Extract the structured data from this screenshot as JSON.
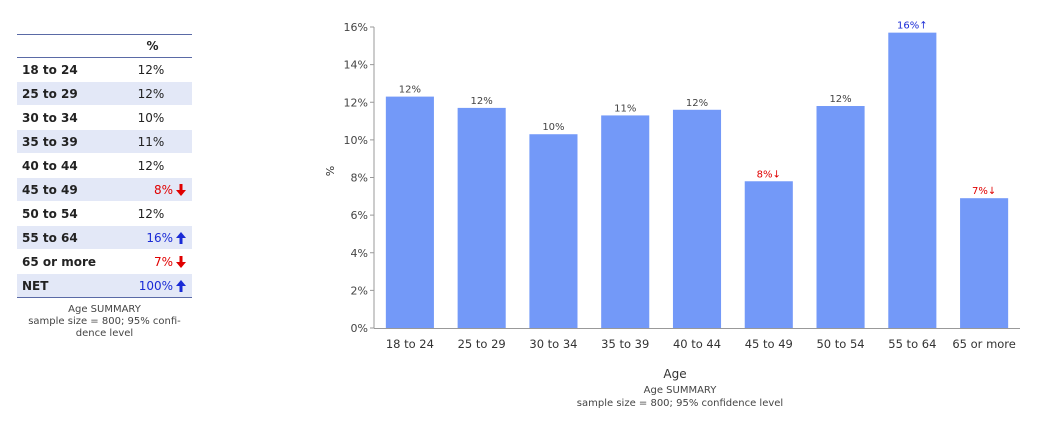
{
  "table": {
    "column_header": "%",
    "rows": [
      {
        "label": "18 to 24",
        "value": "12%",
        "sig": "none"
      },
      {
        "label": "25 to 29",
        "value": "12%",
        "sig": "none"
      },
      {
        "label": "30 to 34",
        "value": "10%",
        "sig": "none"
      },
      {
        "label": "35 to 39",
        "value": "11%",
        "sig": "none"
      },
      {
        "label": "40 to 44",
        "value": "12%",
        "sig": "none"
      },
      {
        "label": "45 to 49",
        "value": "8%",
        "sig": "low"
      },
      {
        "label": "50 to 54",
        "value": "12%",
        "sig": "none"
      },
      {
        "label": "55 to 64",
        "value": "16%",
        "sig": "high"
      },
      {
        "label": "65 or more",
        "value": "7%",
        "sig": "low"
      },
      {
        "label": "NET",
        "value": "100%",
        "sig": "high"
      }
    ],
    "footnote_line1": "Age SUMMARY",
    "footnote_line2": "sample size = 800; 95% confi-",
    "footnote_line3": "dence level"
  },
  "colors": {
    "bar": "#7399f8",
    "low": "#e00000",
    "high": "#1a2bd6",
    "alt_row": "#e3e8f7",
    "rule": "#5a6aa6"
  },
  "chart_data": {
    "type": "bar",
    "categories": [
      "18 to 24",
      "25 to 29",
      "30 to 34",
      "35 to 39",
      "40 to 44",
      "45 to 49",
      "50 to 54",
      "55 to 64",
      "65 or more"
    ],
    "values": [
      12.3,
      11.7,
      10.3,
      11.3,
      11.6,
      7.8,
      11.8,
      15.7,
      6.9
    ],
    "data_labels": [
      "12%",
      "12%",
      "10%",
      "11%",
      "12%",
      "8%↓",
      "12%",
      "16%↑",
      "7%↓"
    ],
    "label_status": [
      "none",
      "none",
      "none",
      "none",
      "none",
      "low",
      "none",
      "high",
      "low"
    ],
    "y_ticks": [
      "0%",
      "2%",
      "4%",
      "6%",
      "8%",
      "10%",
      "12%",
      "14%",
      "16%"
    ],
    "ylim": [
      0,
      16
    ],
    "xlabel": "Age",
    "ylabel": "%",
    "grid": false,
    "footnote_line1": "Age SUMMARY",
    "footnote_line2": "sample size = 800; 95% confidence level"
  }
}
